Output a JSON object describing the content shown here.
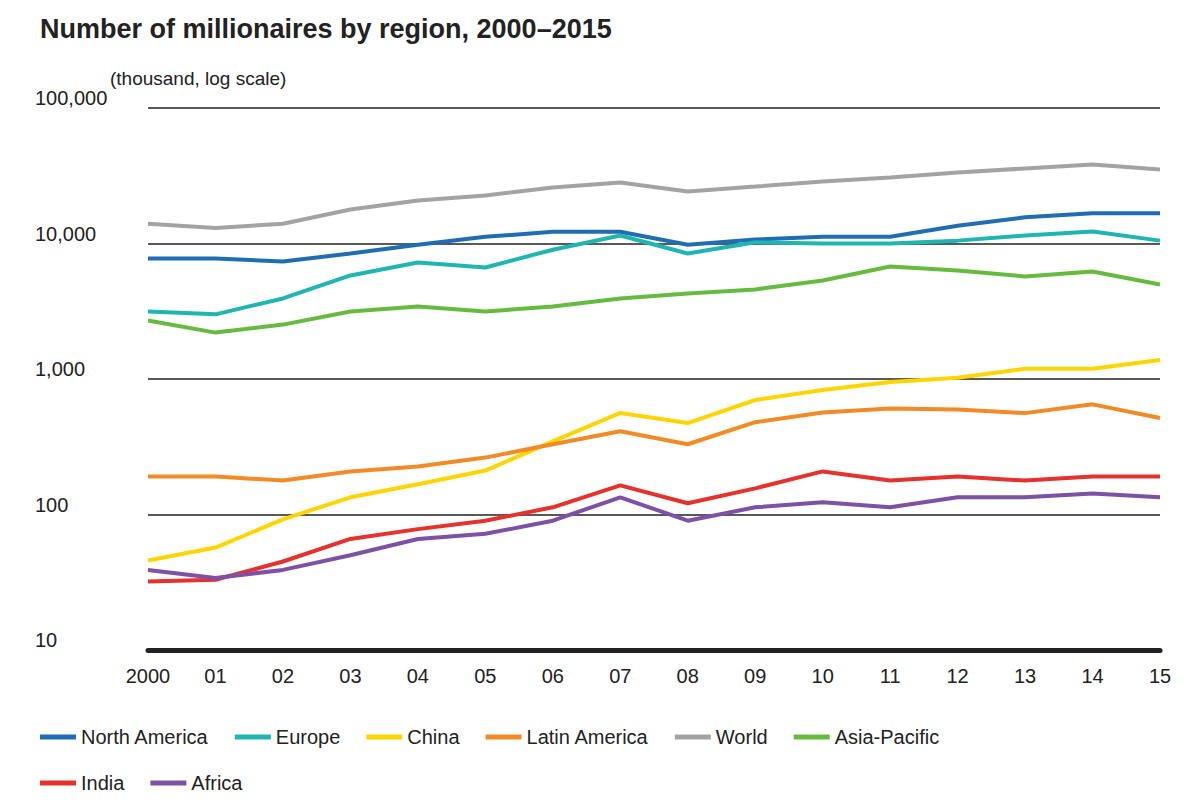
{
  "chart_data": {
    "type": "line",
    "title": "Number of millionaires by region, 2000–2015",
    "y_label": "(thousand, log scale)",
    "log": "y",
    "grid": true,
    "legend": "bottom",
    "categories": [
      "2000",
      "01",
      "02",
      "03",
      "04",
      "05",
      "06",
      "07",
      "08",
      "09",
      "10",
      "11",
      "12",
      "13",
      "14",
      "15"
    ],
    "ylim": [
      10,
      100000
    ],
    "yticks": [
      10,
      100,
      {
        "value": 1000,
        "label": "1,000"
      },
      {
        "value": 10000,
        "label": "10,000"
      },
      {
        "value": 100000,
        "label": "100,000"
      }
    ],
    "series": [
      {
        "name": "North America",
        "color": "#1f6db3",
        "values": [
          7750,
          7750,
          7360,
          8440,
          9800,
          11200,
          12200,
          12200,
          9800,
          10700,
          11200,
          11200,
          13500,
          15600,
          16700,
          16700
        ]
      },
      {
        "name": "Europe",
        "color": "#1fb5b0",
        "values": [
          3150,
          3000,
          3930,
          5810,
          7240,
          6650,
          9000,
          11450,
          8440,
          10200,
          10000,
          10000,
          10500,
          11450,
          12250,
          10500
        ]
      },
      {
        "name": "China",
        "color": "#ffd500",
        "values": [
          45.8,
          57,
          92,
          134,
          167,
          211,
          346,
          562,
          473,
          700,
          830,
          950,
          1020,
          1190,
          1190,
          1380
        ]
      },
      {
        "name": "Latin America",
        "color": "#f28a25",
        "values": [
          191,
          191,
          178,
          208,
          226,
          263,
          330,
          412,
          330,
          480,
          565,
          605,
          595,
          560,
          650,
          515
        ]
      },
      {
        "name": "World",
        "color": "#a3a3a3",
        "values": [
          14000,
          13000,
          14000,
          17800,
          20800,
          22600,
          25900,
          28200,
          24200,
          26300,
          28700,
          30700,
          33400,
          35800,
          38300,
          35200
        ]
      },
      {
        "name": "Asia-Pacific",
        "color": "#66bb3f",
        "values": [
          2700,
          2200,
          2520,
          3150,
          3430,
          3150,
          3430,
          3930,
          4280,
          4580,
          5330,
          6760,
          6320,
          5710,
          6210,
          4980
        ]
      },
      {
        "name": "India",
        "color": "#e5322d",
        "values": [
          32,
          33,
          45,
          66,
          78,
          90,
          113,
          164,
          121,
          156,
          208,
          178,
          191,
          178,
          191,
          191
        ]
      },
      {
        "name": "Africa",
        "color": "#7d51a6",
        "values": [
          39,
          34,
          39,
          50,
          66,
          72,
          90,
          134,
          90,
          113,
          123,
          113,
          134,
          134,
          143,
          134
        ]
      }
    ]
  }
}
